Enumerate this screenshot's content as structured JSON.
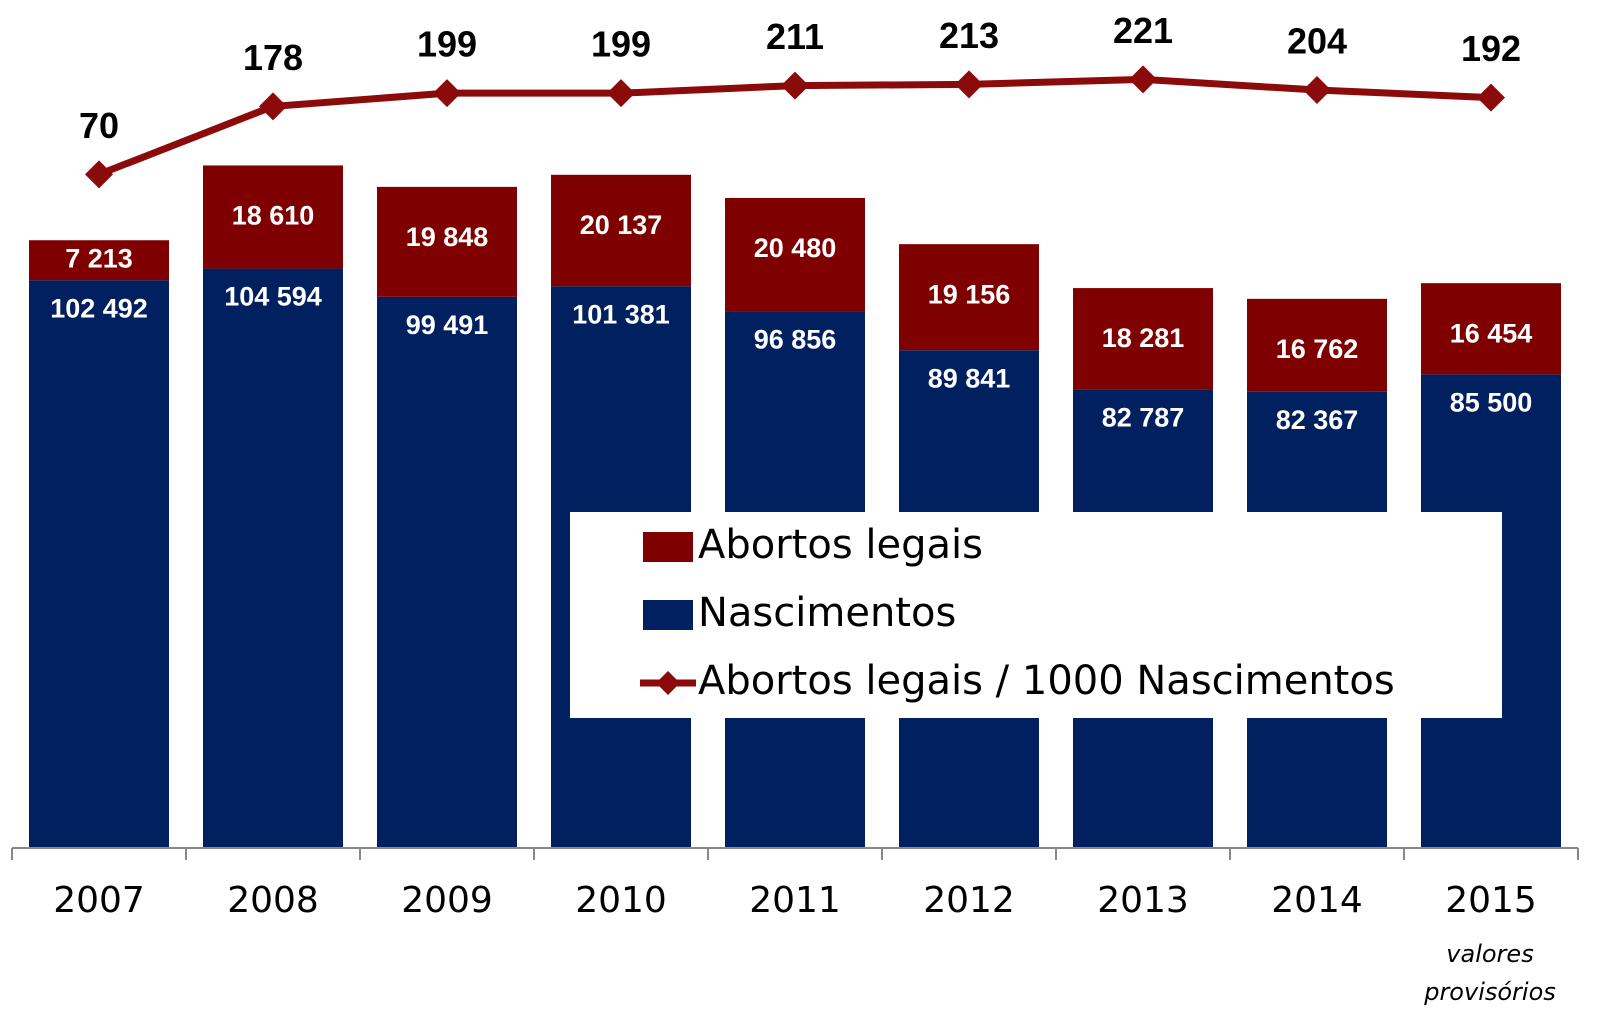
{
  "chart_data": {
    "type": "bar",
    "stacked": true,
    "categories": [
      "2007",
      "2008",
      "2009",
      "2010",
      "2011",
      "2012",
      "2013",
      "2014",
      "2015"
    ],
    "series": [
      {
        "name": "Nascimentos",
        "color": "#002060",
        "values": [
          102492,
          104594,
          99491,
          101381,
          96856,
          89841,
          82787,
          82367,
          85500
        ],
        "value_labels": [
          "102 492",
          "104 594",
          "99 491",
          "101 381",
          "96 856",
          "89 841",
          "82 787",
          "82 367",
          "85 500"
        ]
      },
      {
        "name": "Abortos legais",
        "color": "#7f0000",
        "values": [
          7213,
          18610,
          19848,
          20137,
          20480,
          19156,
          18281,
          16762,
          16454
        ],
        "value_labels": [
          "7 213",
          "18 610",
          "19 848",
          "20 137",
          "20 480",
          "19 156",
          "18 281",
          "16 762",
          "16 454"
        ]
      },
      {
        "name": "Abortos legais / 1000 Nascimentos",
        "color": "#8b0a0a",
        "type": "line",
        "axis": "y2",
        "values": [
          70,
          178,
          199,
          199,
          211,
          213,
          221,
          204,
          192
        ]
      }
    ],
    "ylim": [
      0,
      150000
    ],
    "y2lim": [
      -1000,
      320
    ],
    "annotation": "valores provisórios"
  }
}
